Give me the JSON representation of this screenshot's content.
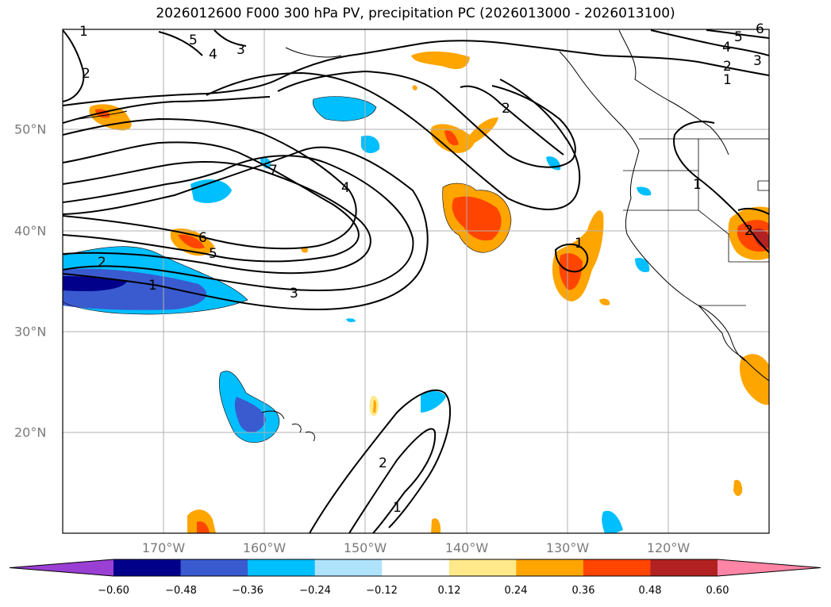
{
  "title": "2026012600 F000 300 hPa PV, precipitation PC (2026013000 - 2026013100)",
  "map": {
    "lon_labels": [
      "170°W",
      "160°W",
      "150°W",
      "140°W",
      "130°W",
      "120°W"
    ],
    "lat_labels": [
      "50°N",
      "40°N",
      "30°N",
      "20°N"
    ],
    "contour_labels": [
      "1",
      "2",
      "5",
      "4",
      "3",
      "7",
      "4",
      "6",
      "5",
      "2",
      "1",
      "3",
      "2",
      "1",
      "1",
      "2",
      "1",
      "2",
      "4",
      "5",
      "3",
      "6",
      "1",
      "2"
    ]
  },
  "colorbar": {
    "ticks": [
      "−0.60",
      "−0.48",
      "−0.36",
      "−0.24",
      "−0.12",
      "0.12",
      "0.24",
      "0.36",
      "0.48",
      "0.60"
    ],
    "colors": [
      "#9a3fd4",
      "#00008b",
      "#3a5bd0",
      "#00bfff",
      "#aee3fb",
      "#ffffff",
      "#ffe98a",
      "#ffa500",
      "#ff4500",
      "#b22222",
      "#ff85a6"
    ]
  }
}
